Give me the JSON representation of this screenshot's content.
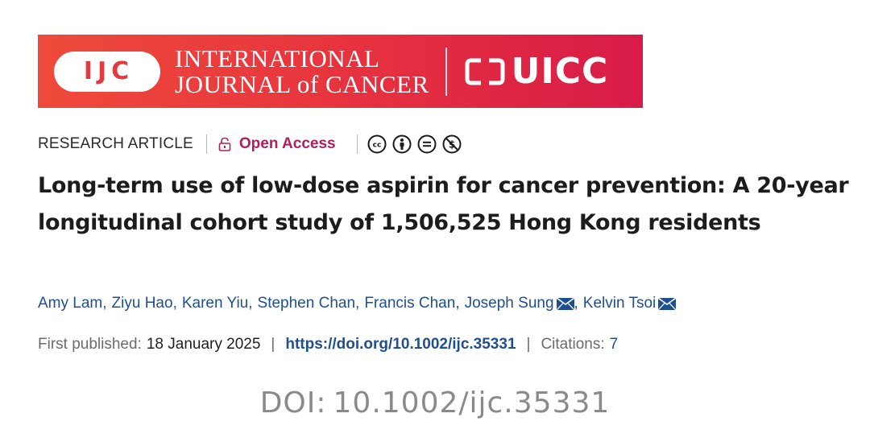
{
  "banner": {
    "ijc_logo": "IJC",
    "journal_name_line1": "INTERNATIONAL",
    "journal_name_line2": "JOURNAL of CANCER",
    "uicc_text": "UICC",
    "colors": {
      "gradient_start": "#ee4a3b",
      "gradient_end": "#d81b48",
      "text": "#ffffff"
    }
  },
  "meta": {
    "article_type": "RESEARCH ARTICLE",
    "open_access": "Open Access",
    "license_icons": [
      "cc-icon",
      "by-attribution-icon",
      "nd-no-derivatives-icon",
      "nc-non-commercial-icon"
    ],
    "open_access_color": "#b01e5e"
  },
  "title": "Long-term use of low-dose aspirin for cancer prevention: A 20-year longitudinal cohort study of 1,506,525 Hong Kong residents",
  "authors": [
    {
      "name": "Amy Lam",
      "corresponding": false
    },
    {
      "name": "Ziyu Hao",
      "corresponding": false
    },
    {
      "name": "Karen Yiu",
      "corresponding": false
    },
    {
      "name": "Stephen Chan",
      "corresponding": false
    },
    {
      "name": "Francis Chan",
      "corresponding": false
    },
    {
      "name": "Joseph Sung",
      "corresponding": true
    },
    {
      "name": "Kelvin Tsoi",
      "corresponding": true
    }
  ],
  "publication": {
    "first_published_label": "First published:",
    "first_published_date": "18 January 2025",
    "doi_url": "https://doi.org/10.1002/ijc.35331",
    "citations_label": "Citations:",
    "citations_count": "7",
    "link_color": "#1f4f8f"
  },
  "caption": {
    "label": "DOI:",
    "doi": "10.1002/ijc.35331"
  }
}
